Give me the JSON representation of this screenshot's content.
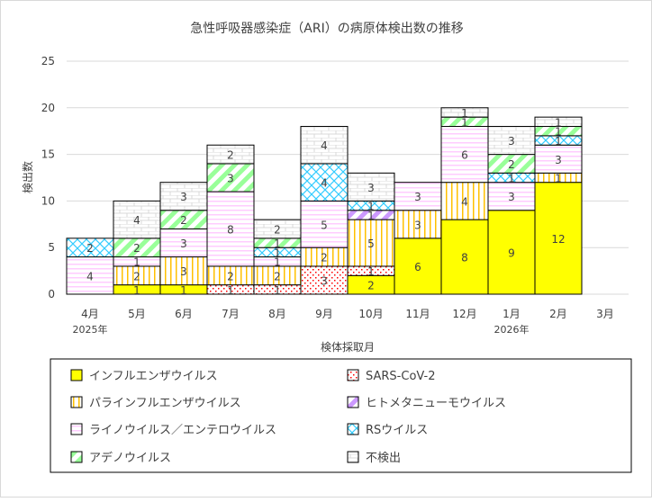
{
  "chart_data": {
    "type": "bar",
    "stacked": true,
    "title": "急性呼吸器感染症（ARI）の病原体検出数の推移",
    "xlabel": "検体採取月",
    "ylabel": "検出数",
    "ylim": [
      0,
      25
    ],
    "yticks": [
      0,
      5,
      10,
      15,
      20,
      25
    ],
    "grid": true,
    "legend_position": "bottom",
    "categories": [
      "4月",
      "5月",
      "6月",
      "7月",
      "8月",
      "9月",
      "10月",
      "11月",
      "12月",
      "1月",
      "2月",
      "3月"
    ],
    "year_labels": [
      {
        "category": "4月",
        "label": "2025年"
      },
      {
        "category": "1月",
        "label": "2026年"
      }
    ],
    "series": [
      {
        "name": "インフルエンザウイルス",
        "pattern": "solid",
        "color": "#ffff00",
        "values": [
          0,
          1,
          1,
          0,
          0,
          0,
          2,
          6,
          8,
          9,
          12,
          0
        ]
      },
      {
        "name": "SARS-CoV-2",
        "pattern": "dots",
        "color": "#ff0000",
        "values": [
          0,
          0,
          0,
          1,
          1,
          3,
          1,
          0,
          0,
          0,
          0,
          0
        ]
      },
      {
        "name": "パラインフルエンザウイルス",
        "pattern": "vertical-lines",
        "color": "#ffc000",
        "values": [
          0,
          2,
          3,
          2,
          2,
          2,
          5,
          3,
          4,
          0,
          1,
          0
        ]
      },
      {
        "name": "ヒトメタニューモウイルス",
        "pattern": "wide-diagonal",
        "color": "#cc99ff",
        "values": [
          0,
          0,
          0,
          0,
          0,
          0,
          1,
          0,
          0,
          0,
          0,
          0
        ]
      },
      {
        "name": "ライノウイルス／エンテロウイルス",
        "pattern": "horizontal-lines",
        "color": "#ffccff",
        "values": [
          4,
          1,
          3,
          8,
          1,
          5,
          0,
          3,
          6,
          3,
          3,
          0
        ]
      },
      {
        "name": "RSウイルス",
        "pattern": "diagonal-cross",
        "color": "#33ccff",
        "values": [
          2,
          0,
          0,
          0,
          1,
          4,
          1,
          0,
          0,
          1,
          1,
          0
        ]
      },
      {
        "name": "アデノウイルス",
        "pattern": "wide-diagonal",
        "color": "#99ff99",
        "values": [
          0,
          2,
          2,
          3,
          1,
          0,
          0,
          0,
          1,
          2,
          1,
          0
        ]
      },
      {
        "name": "不検出",
        "pattern": "brick",
        "color": "#d9d9d9",
        "values": [
          0,
          4,
          3,
          2,
          2,
          4,
          3,
          0,
          1,
          3,
          1,
          0
        ]
      }
    ]
  }
}
